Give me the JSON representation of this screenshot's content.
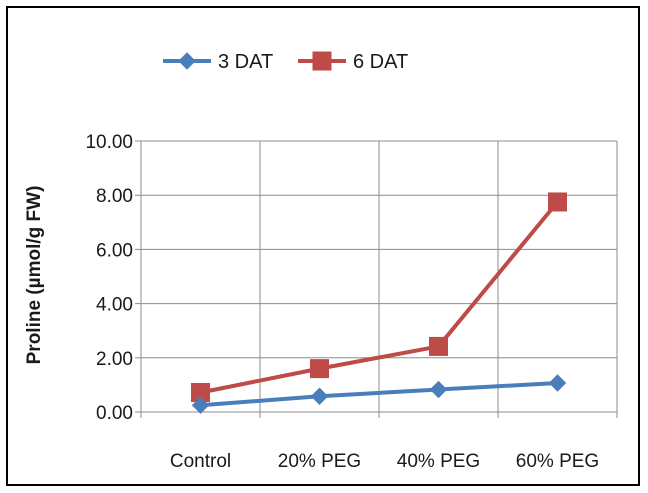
{
  "chart_data": {
    "type": "line",
    "title": "",
    "xlabel": "",
    "ylabel": "Proline (µmol/g FW)",
    "categories": [
      "Control",
      "20% PEG",
      "40% PEG",
      "60% PEG"
    ],
    "ylim": [
      0,
      10
    ],
    "yticks": [
      "0.00",
      "2.00",
      "4.00",
      "6.00",
      "8.00",
      "10.00"
    ],
    "grid": true,
    "legend_position": "top",
    "series": [
      {
        "name": "3 DAT",
        "values": [
          0.25,
          0.58,
          0.83,
          1.07
        ],
        "color": "#4a7ebb",
        "marker": "diamond"
      },
      {
        "name": "6 DAT",
        "values": [
          0.72,
          1.6,
          2.42,
          7.75
        ],
        "color": "#be4b48",
        "marker": "square"
      }
    ]
  }
}
